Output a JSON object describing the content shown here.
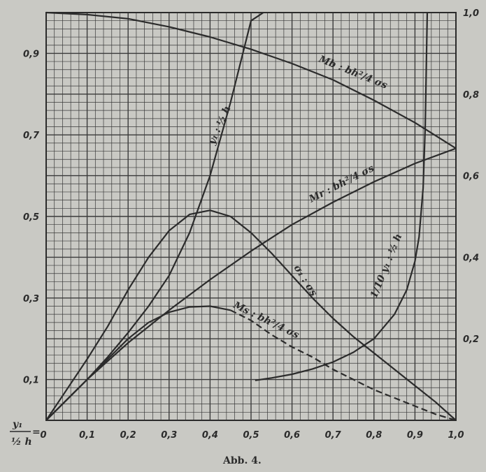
{
  "chart_data": {
    "type": "line",
    "caption": "Abb. 4.",
    "xlabel": "",
    "ylabel_left_numerator": "y₁",
    "ylabel_left_denominator": "½ h",
    "ylabel_left_suffix": "=",
    "x_range": [
      0,
      1.0
    ],
    "y_left_range": [
      0,
      1.0
    ],
    "y_right_range": [
      0,
      1.0
    ],
    "x_ticks": [
      "0",
      "0,1",
      "0,2",
      "0,3",
      "0,4",
      "0,5",
      "0,6",
      "0,7",
      "0,8",
      "0,9",
      "1,0"
    ],
    "x_tick_values": [
      0,
      0.1,
      0.2,
      0.3,
      0.4,
      0.5,
      0.6,
      0.7,
      0.8,
      0.9,
      1.0
    ],
    "y_left_ticks": [
      "0,1",
      "0,3",
      "0,5",
      "0,7",
      "0,9"
    ],
    "y_left_tick_values": [
      0.1,
      0.3,
      0.5,
      0.7,
      0.9
    ],
    "y_right_ticks": [
      "0,2",
      "0,4",
      "0,6",
      "0,8",
      "1,0"
    ],
    "y_right_tick_values": [
      0.2,
      0.4,
      0.6,
      0.8,
      1.0
    ],
    "grid": true,
    "grid_minor_step": 0.02,
    "series": [
      {
        "key": "y1",
        "name": "y₁ : ½ h",
        "style": "solid",
        "x": [
          0,
          0.05,
          0.1,
          0.15,
          0.2,
          0.25,
          0.3,
          0.35,
          0.4,
          0.45,
          0.5,
          0.53
        ],
        "y": [
          0,
          0.05,
          0.1,
          0.155,
          0.215,
          0.28,
          0.355,
          0.46,
          0.6,
          0.78,
          0.98,
          1.0
        ]
      },
      {
        "key": "Mb",
        "name": "Mb : bh²/4 σs",
        "style": "solid",
        "x": [
          0,
          0.1,
          0.2,
          0.3,
          0.4,
          0.5,
          0.6,
          0.7,
          0.8,
          0.9,
          1.0
        ],
        "y": [
          1.0,
          0.995,
          0.985,
          0.965,
          0.94,
          0.91,
          0.875,
          0.835,
          0.785,
          0.73,
          0.667
        ]
      },
      {
        "key": "Mr",
        "name": "Mr : bh²/4 σs",
        "style": "solid",
        "x": [
          0,
          0.1,
          0.2,
          0.3,
          0.4,
          0.5,
          0.6,
          0.7,
          0.8,
          0.9,
          1.0
        ],
        "y": [
          0,
          0.1,
          0.19,
          0.27,
          0.345,
          0.415,
          0.48,
          0.535,
          0.585,
          0.63,
          0.667
        ]
      },
      {
        "key": "sigma1",
        "name": "σ₁ : σs",
        "style": "solid",
        "x": [
          0,
          0.05,
          0.1,
          0.15,
          0.2,
          0.25,
          0.3,
          0.35,
          0.4,
          0.45,
          0.5,
          0.55,
          0.6,
          0.65,
          0.7,
          0.75,
          0.8,
          0.85,
          0.9,
          0.95,
          1.0
        ],
        "y": [
          0,
          0.075,
          0.15,
          0.23,
          0.32,
          0.4,
          0.465,
          0.505,
          0.515,
          0.5,
          0.46,
          0.41,
          0.355,
          0.3,
          0.25,
          0.205,
          0.165,
          0.125,
          0.085,
          0.045,
          0
        ]
      },
      {
        "key": "Ms",
        "name": "Ms : bh²/4 σs",
        "style": "solid-then-dashed",
        "dash_from_x": 0.45,
        "x": [
          0,
          0.05,
          0.1,
          0.15,
          0.2,
          0.25,
          0.3,
          0.35,
          0.4,
          0.45,
          0.5,
          0.55,
          0.6,
          0.65,
          0.7,
          0.75,
          0.8,
          0.85,
          0.9,
          0.95,
          1.0
        ],
        "y": [
          0,
          0.05,
          0.1,
          0.15,
          0.2,
          0.24,
          0.265,
          0.278,
          0.28,
          0.27,
          0.245,
          0.21,
          0.18,
          0.155,
          0.125,
          0.1,
          0.075,
          0.055,
          0.035,
          0.015,
          0
        ]
      },
      {
        "key": "inv",
        "name": "1/10 y₁ : ½ h",
        "style": "solid",
        "x": [
          0.51,
          0.55,
          0.6,
          0.65,
          0.7,
          0.75,
          0.8,
          0.85,
          0.88,
          0.9,
          0.91,
          0.92,
          0.925,
          0.93
        ],
        "y": [
          0.098,
          0.104,
          0.113,
          0.126,
          0.143,
          0.167,
          0.2,
          0.26,
          0.32,
          0.39,
          0.45,
          0.57,
          0.72,
          1.0
        ]
      }
    ]
  }
}
